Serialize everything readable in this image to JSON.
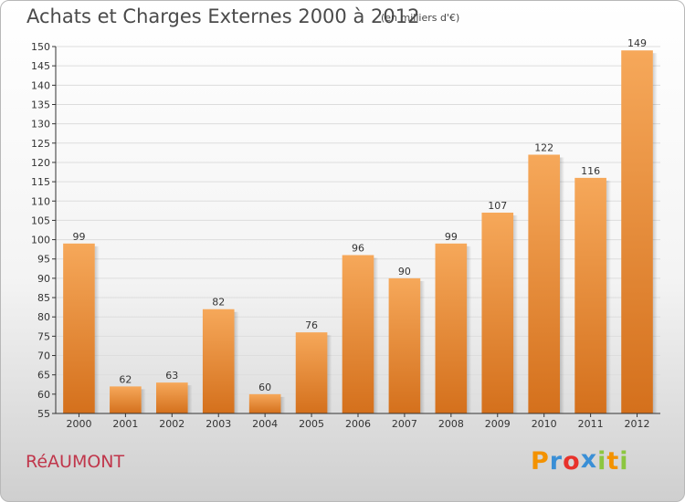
{
  "title": "Achats et Charges Externes 2000 à 2012",
  "subtitle": "(en milliers d'€)",
  "commune": "RéAUMONT",
  "logo": {
    "letters": [
      "P",
      "r",
      "o",
      "x",
      "i",
      "t",
      "i"
    ],
    "colors": [
      "#f39200",
      "#3a8fd6",
      "#e8322b",
      "#3a8fd6",
      "#8cc63f",
      "#f39200",
      "#8cc63f"
    ]
  },
  "colors": {
    "bar_top": "#f6a85a",
    "bar_bottom": "#d4701c",
    "grid": "#dddddd",
    "axis": "#333333",
    "text": "#333333"
  },
  "chart_data": {
    "type": "bar",
    "categories": [
      "2000",
      "2001",
      "2002",
      "2003",
      "2004",
      "2005",
      "2006",
      "2007",
      "2008",
      "2009",
      "2010",
      "2011",
      "2012"
    ],
    "values": [
      99,
      62,
      63,
      82,
      60,
      76,
      96,
      90,
      99,
      107,
      122,
      116,
      149
    ],
    "ylim": [
      55,
      150
    ],
    "yticks": [
      55,
      60,
      65,
      70,
      75,
      80,
      85,
      90,
      95,
      100,
      105,
      110,
      115,
      120,
      125,
      130,
      135,
      140,
      145,
      150
    ],
    "grid": true,
    "data_labels": true
  }
}
